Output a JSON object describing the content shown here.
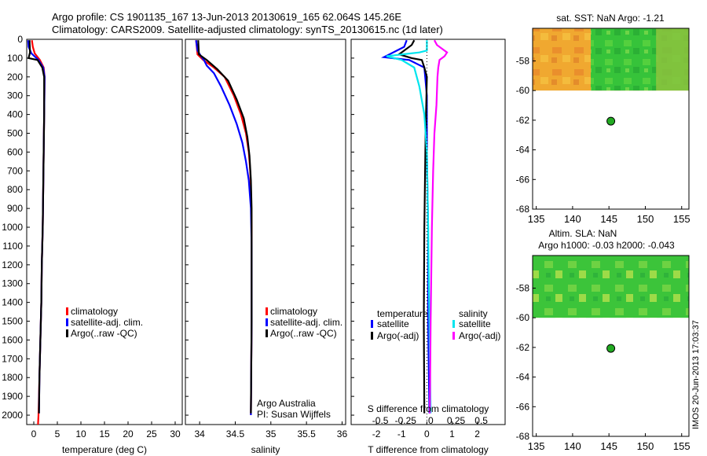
{
  "header": {
    "line1": "Argo profile: CS 1901135_167 13-Jun-2013 20130619_165 62.064S 145.26E",
    "line2": "Climatology: CARS2009. Satellite-adjusted climatology: synTS_20130615.nc (1d later)"
  },
  "footer_vertical": "IMOS 20-Jun-2013 17:03:37",
  "colors": {
    "climatology": "#ff0000",
    "satellite": "#0000ff",
    "argo": "#000000",
    "sat_s": "#00e5ee",
    "argo_s": "#ff00ff",
    "float_marker": "#22aa22"
  },
  "chart_data": [
    {
      "id": "temperature",
      "type": "line",
      "xlabel": "temperature (deg C)",
      "ylabel": "",
      "xlim": [
        -1.5,
        31.5
      ],
      "ylim": [
        2050,
        0
      ],
      "xticks": [
        0,
        5,
        10,
        15,
        20,
        25,
        30
      ],
      "yticks": [
        0,
        100,
        200,
        300,
        400,
        500,
        600,
        700,
        800,
        900,
        1000,
        1100,
        1200,
        1300,
        1400,
        1500,
        1600,
        1700,
        1800,
        1900,
        2000
      ],
      "legend": [
        "climatology",
        "satellite-adj. clim.",
        "Argo(..raw -QC)"
      ],
      "series": [
        {
          "name": "climatology",
          "color": "#ff0000",
          "points": [
            [
              -0.4,
              5
            ],
            [
              -0.2,
              40
            ],
            [
              0.2,
              75
            ],
            [
              1.3,
              110
            ],
            [
              2.1,
              150
            ],
            [
              2.3,
              200
            ],
            [
              2.2,
              400
            ],
            [
              2.1,
              600
            ],
            [
              2.0,
              800
            ],
            [
              1.9,
              1000
            ],
            [
              1.7,
              1200
            ],
            [
              1.6,
              1400
            ],
            [
              1.4,
              1600
            ],
            [
              1.2,
              1800
            ],
            [
              1.0,
              2000
            ],
            [
              0.9,
              2050
            ]
          ]
        },
        {
          "name": "satellite-adj. clim.",
          "color": "#0000ff",
          "points": [
            [
              -1.2,
              5
            ],
            [
              -1.1,
              40
            ],
            [
              -0.5,
              75
            ],
            [
              1.0,
              110
            ],
            [
              2.0,
              150
            ],
            [
              2.3,
              200
            ],
            [
              2.2,
              400
            ],
            [
              2.1,
              600
            ],
            [
              2.0,
              800
            ],
            [
              1.9,
              1000
            ],
            [
              1.7,
              1200
            ],
            [
              1.6,
              1400
            ],
            [
              1.4,
              1600
            ],
            [
              1.2,
              1800
            ],
            [
              1.1,
              1990
            ]
          ]
        },
        {
          "name": "Argo(..raw -QC)",
          "color": "#000000",
          "points": [
            [
              -0.9,
              5
            ],
            [
              -0.8,
              70
            ],
            [
              -1.1,
              100
            ],
            [
              0.8,
              110
            ],
            [
              1.8,
              150
            ],
            [
              2.2,
              200
            ],
            [
              2.2,
              400
            ],
            [
              2.1,
              600
            ],
            [
              2.0,
              800
            ],
            [
              1.9,
              1000
            ],
            [
              1.7,
              1200
            ],
            [
              1.6,
              1400
            ],
            [
              1.4,
              1600
            ],
            [
              1.2,
              1800
            ],
            [
              1.1,
              1990
            ]
          ]
        }
      ]
    },
    {
      "id": "salinity",
      "type": "line",
      "xlabel": "salinity",
      "ylabel": "",
      "xlim": [
        33.8,
        36.05
      ],
      "ylim": [
        2050,
        0
      ],
      "xticks": [
        34,
        34.5,
        35,
        35.5,
        36
      ],
      "legend": [
        "climatology",
        "satellite-adj. clim.",
        "Argo(..raw -QC)"
      ],
      "series": [
        {
          "name": "climatology",
          "color": "#ff0000",
          "points": [
            [
              33.95,
              5
            ],
            [
              33.97,
              80
            ],
            [
              34.05,
              110
            ],
            [
              34.2,
              150
            ],
            [
              34.35,
              200
            ],
            [
              34.48,
              300
            ],
            [
              34.58,
              400
            ],
            [
              34.65,
              500
            ],
            [
              34.69,
              600
            ],
            [
              34.71,
              700
            ],
            [
              34.72,
              800
            ],
            [
              34.73,
              1000
            ],
            [
              34.73,
              1500
            ],
            [
              34.72,
              2000
            ]
          ]
        },
        {
          "name": "satellite-adj. clim.",
          "color": "#0000ff",
          "points": [
            [
              33.95,
              5
            ],
            [
              33.97,
              60
            ],
            [
              34.02,
              90
            ],
            [
              34.06,
              110
            ],
            [
              34.1,
              140
            ],
            [
              34.2,
              180
            ],
            [
              34.3,
              250
            ],
            [
              34.42,
              350
            ],
            [
              34.52,
              450
            ],
            [
              34.6,
              550
            ],
            [
              34.65,
              650
            ],
            [
              34.69,
              750
            ],
            [
              34.72,
              900
            ],
            [
              34.73,
              1100
            ],
            [
              34.73,
              1500
            ],
            [
              34.72,
              2000
            ]
          ]
        },
        {
          "name": "Argo(..raw -QC)",
          "color": "#000000",
          "points": [
            [
              33.98,
              5
            ],
            [
              33.99,
              80
            ],
            [
              34.1,
              110
            ],
            [
              34.25,
              160
            ],
            [
              34.4,
              220
            ],
            [
              34.52,
              320
            ],
            [
              34.62,
              420
            ],
            [
              34.67,
              520
            ],
            [
              34.7,
              620
            ],
            [
              34.72,
              750
            ],
            [
              34.73,
              900
            ],
            [
              34.73,
              1500
            ],
            [
              34.72,
              1990
            ]
          ]
        }
      ],
      "annotation": [
        "Argo Australia",
        "PI: Susan Wijffels"
      ]
    },
    {
      "id": "difference",
      "type": "line",
      "xlabel": "T difference from climatology",
      "top_axis_label": "S difference from climatology",
      "xlim": [
        -3.0,
        3.1
      ],
      "ylim": [
        2050,
        0
      ],
      "xticks": [
        -2,
        -1,
        0,
        1,
        2
      ],
      "top_ticks": [
        "-0.5",
        "-0.25",
        "0",
        "0.25",
        "0.5"
      ],
      "legend_headers": [
        "temperature",
        "salinity"
      ],
      "legend": [
        "satellite",
        "Argo(-adj)",
        "satellite",
        "Argo(-adj)"
      ],
      "series": [
        {
          "name": "T satellite",
          "color": "#0000ff",
          "points": [
            [
              -0.8,
              5
            ],
            [
              -0.9,
              40
            ],
            [
              -1.7,
              95
            ],
            [
              -0.7,
              110
            ],
            [
              -0.1,
              150
            ],
            [
              0.0,
              300
            ],
            [
              0.0,
              600
            ],
            [
              0.05,
              1000
            ],
            [
              0.05,
              1500
            ],
            [
              0.1,
              1990
            ]
          ]
        },
        {
          "name": "T Argo(-adj)",
          "color": "#000000",
          "points": [
            [
              -0.5,
              5
            ],
            [
              -0.6,
              30
            ],
            [
              -1.1,
              80
            ],
            [
              -0.6,
              100
            ],
            [
              -0.2,
              110
            ],
            [
              -0.1,
              150
            ],
            [
              0.0,
              200
            ],
            [
              -0.05,
              500
            ],
            [
              -0.1,
              1000
            ],
            [
              -0.12,
              1500
            ],
            [
              -0.1,
              1990
            ]
          ]
        },
        {
          "name": "S satellite",
          "color": "#00e5ee",
          "points": [
            [
              0.0,
              5
            ],
            [
              0.0,
              60
            ],
            [
              -0.3,
              70
            ],
            [
              -1.6,
              90
            ],
            [
              -1.0,
              110
            ],
            [
              -0.5,
              150
            ],
            [
              -0.3,
              250
            ],
            [
              -0.1,
              400
            ],
            [
              0.0,
              600
            ],
            [
              0.05,
              1000
            ],
            [
              0.1,
              1500
            ],
            [
              0.15,
              1990
            ]
          ]
        },
        {
          "name": "S Argo(-adj)",
          "color": "#ff00ff",
          "points": [
            [
              0.3,
              5
            ],
            [
              0.4,
              30
            ],
            [
              0.6,
              50
            ],
            [
              0.8,
              70
            ],
            [
              0.7,
              90
            ],
            [
              0.5,
              110
            ],
            [
              0.45,
              150
            ],
            [
              0.42,
              200
            ],
            [
              0.38,
              350
            ],
            [
              0.3,
              500
            ],
            [
              0.25,
              700
            ],
            [
              0.2,
              1000
            ],
            [
              0.15,
              1500
            ],
            [
              0.12,
              1990
            ]
          ]
        }
      ]
    },
    {
      "id": "sst_map",
      "type": "heatmap",
      "title": "sat. SST: NaN Argo: -1.21",
      "xlim": [
        134.5,
        156
      ],
      "ylim": [
        -68,
        -55.8
      ],
      "xticks": [
        135,
        140,
        145,
        150,
        155
      ],
      "yticks": [
        -58,
        -60,
        -62,
        -64,
        -66,
        -68
      ],
      "data_extent_lat": [
        -60,
        -55.8
      ],
      "float": {
        "lon": 145.26,
        "lat": -62.064
      }
    },
    {
      "id": "sla_map",
      "type": "heatmap",
      "title": "Altim. SLA: NaN",
      "subtitle": "Argo h1000: -0.03 h2000: -0.043",
      "xlim": [
        134.5,
        156
      ],
      "ylim": [
        -68,
        -55.8
      ],
      "xticks": [
        135,
        140,
        145,
        150,
        155
      ],
      "yticks": [
        -58,
        -60,
        -62,
        -64,
        -66,
        -68
      ],
      "data_extent_lat": [
        -60,
        -55.8
      ],
      "float": {
        "lon": 145.26,
        "lat": -62.064
      }
    }
  ]
}
